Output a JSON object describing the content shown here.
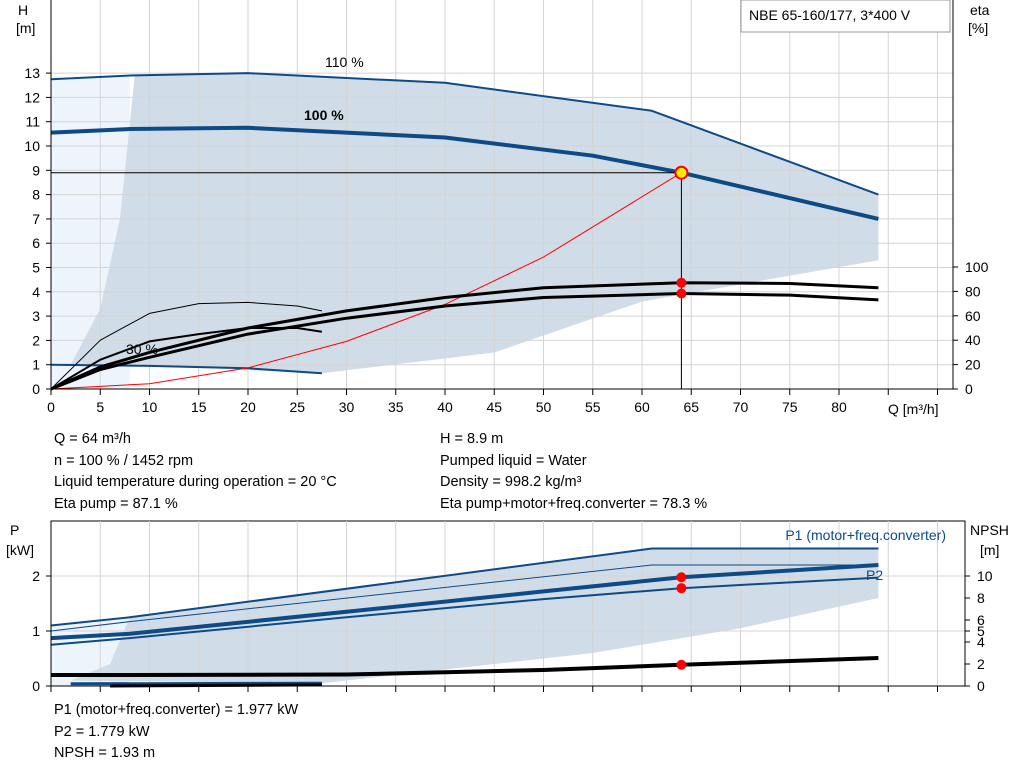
{
  "title_box": "NBE 65-160/177, 3*400 V",
  "chart_data": [
    {
      "type": "line",
      "name": "head-efficiency",
      "ylabel": [
        "H",
        "[m]"
      ],
      "y2label": [
        "eta",
        "[%]"
      ],
      "xlabel": "Q [m³/h]",
      "xlim": [
        0,
        90
      ],
      "ylim": [
        0,
        16
      ],
      "y2lim": [
        0,
        100
      ],
      "xticks": [
        0,
        5,
        10,
        15,
        20,
        25,
        30,
        35,
        40,
        45,
        50,
        55,
        60,
        65,
        70,
        75,
        80
      ],
      "yticks": [
        0,
        1,
        2,
        3,
        4,
        5,
        6,
        7,
        8,
        9,
        10,
        11,
        12,
        13
      ],
      "y2ticks": [
        0,
        20,
        40,
        60,
        80,
        100
      ],
      "grid": true,
      "curve_labels": [
        "110 %",
        "100 %",
        "30 %"
      ],
      "series": [
        {
          "id": "h-110",
          "axis": "y",
          "color": "#0d4a86",
          "width": 2,
          "x": [
            0,
            8,
            20,
            40,
            61,
            84
          ],
          "y": [
            12.75,
            12.9,
            13,
            12.6,
            11.45,
            8
          ]
        },
        {
          "id": "h-100",
          "axis": "y",
          "color": "#0d4a86",
          "width": 4,
          "x": [
            0,
            8,
            20,
            40,
            55,
            64,
            84
          ],
          "y": [
            10.55,
            10.7,
            10.75,
            10.35,
            9.6,
            8.9,
            7
          ]
        },
        {
          "id": "h-30",
          "axis": "y",
          "color": "#0d4a86",
          "width": 2,
          "x": [
            0,
            10,
            20,
            27.5
          ],
          "y": [
            1,
            0.95,
            0.85,
            0.65
          ]
        },
        {
          "id": "system-curve",
          "axis": "y",
          "color": "#ff0000",
          "width": 1,
          "x": [
            0,
            10,
            20,
            30,
            40,
            50,
            64
          ],
          "y": [
            0,
            0.22,
            0.87,
            1.96,
            3.48,
            5.43,
            8.9
          ]
        },
        {
          "id": "eta-pump-100",
          "axis": "y2",
          "color": "#000",
          "width": 3,
          "x": [
            0,
            5,
            10,
            20,
            30,
            40,
            50,
            64,
            75,
            84
          ],
          "y": [
            0,
            18,
            30,
            50,
            64,
            75,
            83,
            87.1,
            86.5,
            83
          ]
        },
        {
          "id": "eta-total-100",
          "axis": "y2",
          "color": "#000",
          "width": 3,
          "x": [
            0,
            5,
            10,
            20,
            30,
            40,
            50,
            64,
            75,
            84
          ],
          "y": [
            0,
            16,
            26,
            45,
            58,
            68,
            75,
            78.3,
            77,
            73
          ]
        },
        {
          "id": "eta-pump-30",
          "axis": "y2",
          "color": "#000",
          "width": 1,
          "x": [
            0,
            5,
            10,
            15,
            20,
            25,
            27.5
          ],
          "y": [
            0,
            40,
            62,
            70,
            71,
            68,
            64
          ]
        },
        {
          "id": "eta-total-30",
          "axis": "y2",
          "color": "#000",
          "width": 2,
          "x": [
            0,
            5,
            10,
            15,
            20,
            25,
            27.5
          ],
          "y": [
            0,
            24,
            39,
            45,
            50,
            50,
            47
          ]
        }
      ],
      "operating_point": {
        "Q": 64,
        "H": 8.9,
        "eta_pump": 87.1,
        "eta_total": 78.3
      }
    },
    {
      "type": "line",
      "name": "power-npsh",
      "ylabel": [
        "P",
        "[kW]"
      ],
      "y2label": [
        "NPSH",
        "[m]"
      ],
      "xlim": [
        0,
        90
      ],
      "ylim": [
        0,
        3
      ],
      "y2lim": [
        0,
        15
      ],
      "yticks": [
        0,
        1,
        2
      ],
      "y2ticks": [
        0,
        2,
        4,
        5,
        6,
        8,
        10
      ],
      "curve_labels": [
        "P1 (motor+freq.converter)",
        "P2"
      ],
      "series": [
        {
          "id": "p1-110",
          "axis": "y",
          "color": "#0d4a86",
          "width": 2,
          "x": [
            0,
            8,
            61,
            84
          ],
          "y": [
            1.1,
            1.25,
            2.5,
            2.5
          ]
        },
        {
          "id": "p1-thin",
          "axis": "y",
          "color": "#0d4a86",
          "width": 1,
          "x": [
            0,
            8,
            61,
            84
          ],
          "y": [
            1.0,
            1.17,
            2.2,
            2.2
          ]
        },
        {
          "id": "p1-100",
          "axis": "y",
          "color": "#0d4a86",
          "width": 4,
          "x": [
            0,
            8,
            30,
            50,
            64,
            84
          ],
          "y": [
            0.87,
            0.95,
            1.35,
            1.72,
            1.977,
            2.2
          ]
        },
        {
          "id": "p2-100",
          "axis": "y",
          "color": "#0d4a86",
          "width": 2,
          "x": [
            0,
            8,
            30,
            50,
            64,
            84
          ],
          "y": [
            0.75,
            0.87,
            1.25,
            1.58,
            1.779,
            1.97
          ]
        },
        {
          "id": "p-30",
          "axis": "y",
          "color": "#0d4a86",
          "width": 3,
          "x": [
            2,
            27.5
          ],
          "y": [
            0.04,
            0.05
          ]
        },
        {
          "id": "npsh-100",
          "axis": "y2",
          "color": "#000",
          "width": 4,
          "x": [
            0,
            8,
            30,
            50,
            64,
            84
          ],
          "y": [
            1.0,
            1.0,
            1.05,
            1.45,
            1.93,
            2.55
          ]
        },
        {
          "id": "npsh-30",
          "axis": "y2",
          "color": "#000",
          "width": 3,
          "x": [
            6,
            27.5
          ],
          "y": [
            0,
            0.1
          ]
        }
      ],
      "operating_point": {
        "P1": 1.977,
        "P2": 1.779,
        "NPSH": 1.93
      }
    }
  ],
  "info_top_left": [
    "Q = 64 m³/h",
    "n = 100 % / 1452 rpm",
    "Liquid temperature during operation = 20 °C",
    "Eta pump = 87.1 %"
  ],
  "info_top_right": [
    "H = 8.9 m",
    "Pumped liquid = Water",
    "Density = 998.2 kg/m³",
    "Eta pump+motor+freq.converter = 78.3 %"
  ],
  "info_bottom": [
    "P1 (motor+freq.converter) = 1.977 kW",
    "P2 = 1.779 kW",
    "NPSH = 1.93 m"
  ],
  "colors": {
    "curve": "#0d4a86",
    "envelope": "#d0dce7",
    "envelope_light": "#edf4fc",
    "point": "#ff0000",
    "grid": "#d4d4d4"
  }
}
